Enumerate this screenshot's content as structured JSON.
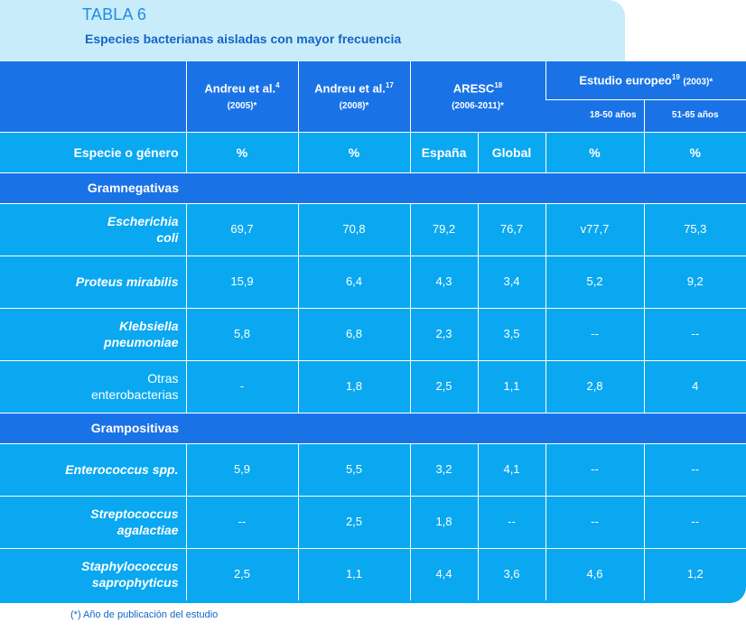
{
  "title": {
    "label": "TABLA 6",
    "subtitle": "Especies bacterianas aisladas con mayor frecuencia"
  },
  "header": {
    "andreu1_name": "Andreu et al.",
    "andreu1_ref": "4",
    "andreu1_year": "(2005)*",
    "andreu2_name": "Andreu et al.",
    "andreu2_ref": "17",
    "andreu2_year": "(2008)*",
    "aresc_name": "ARESC",
    "aresc_ref": "18",
    "aresc_year": "(2006-2011)*",
    "euro_name": "Estudio europeo",
    "euro_ref": "19",
    "euro_year": "(2003)*",
    "euro_sub1": "18-50 años",
    "euro_sub2": "51-65 años"
  },
  "column_headers": [
    "Especie o género",
    "%",
    "%",
    "España",
    "Global",
    "%",
    "%"
  ],
  "groups": [
    {
      "label": "Gramnegativas",
      "rows": [
        {
          "species": [
            "Escherichia",
            "coli"
          ],
          "italic": true,
          "values": [
            "69,7",
            "70,8",
            "79,2",
            "76,7",
            "v77,7",
            "75,3"
          ]
        },
        {
          "species": [
            "Proteus mirabilis"
          ],
          "italic": true,
          "values": [
            "15,9",
            "6,4",
            "4,3",
            "3,4",
            "5,2",
            "9,2"
          ]
        },
        {
          "species": [
            "Klebsiella",
            "pneumoniae"
          ],
          "italic": true,
          "values": [
            "5,8",
            "6,8",
            "2,3",
            "3,5",
            "--",
            "--"
          ]
        },
        {
          "species": [
            "Otras",
            "enterobacterias"
          ],
          "italic": false,
          "values": [
            "-",
            "1,8",
            "2,5",
            "1,1",
            "2,8",
            "4"
          ]
        }
      ]
    },
    {
      "label": "Grampositivas",
      "rows": [
        {
          "species": [
            "Enterococcus spp."
          ],
          "italic": true,
          "values": [
            "5,9",
            "5,5",
            "3,2",
            "4,1",
            "--",
            "--"
          ]
        },
        {
          "species": [
            "Streptococcus",
            "agalactiae"
          ],
          "italic": true,
          "values": [
            "--",
            "2,5",
            "1,8",
            "--",
            "--",
            "--"
          ]
        },
        {
          "species": [
            "Staphylococcus",
            "saprophyticus"
          ],
          "italic": true,
          "values": [
            "2,5",
            "1,1",
            "4,4",
            "3,6",
            "4,6",
            "1,2"
          ]
        }
      ]
    }
  ],
  "footnote": "(*) Año de publicación del estudio",
  "colors": {
    "dark_blue": "#1a73e6",
    "light_blue": "#0aa8f0",
    "title_bg": "#c9ecfb"
  }
}
